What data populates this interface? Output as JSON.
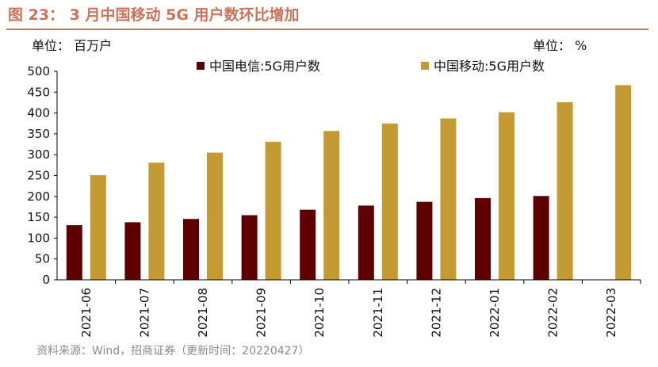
{
  "header": {
    "title": "图 23：  3 月中国移动 5G 用户数环比增加",
    "accent_color": "#c8735a",
    "unit_left": "单位：  百万户",
    "unit_right": "单位：  %"
  },
  "footer": {
    "source": "资料来源：Wind，招商证券（更新时间：20220427）"
  },
  "chart_data": {
    "type": "bar",
    "title": "3 月中国移动 5G 用户数环比增加",
    "xlabel": "",
    "ylabel": "",
    "ylim": [
      0,
      500
    ],
    "yticks": [
      "0",
      "50",
      "100",
      "150",
      "200",
      "250",
      "300",
      "350",
      "400",
      "450",
      "500"
    ],
    "grid": false,
    "legend_position": "top",
    "categories": [
      "2021-06",
      "2021-07",
      "2021-08",
      "2021-09",
      "2021-10",
      "2021-11",
      "2021-12",
      "2022-01",
      "2022-02",
      "2022-03"
    ],
    "series": [
      {
        "name": "中国电信:5G用户数",
        "color": "#5e0000",
        "values": [
          131,
          138,
          146,
          155,
          168,
          178,
          187,
          196,
          201,
          null
        ]
      },
      {
        "name": "中国移动:5G用户数",
        "color": "#c49b33",
        "values": [
          251,
          281,
          305,
          331,
          357,
          375,
          387,
          402,
          426,
          467
        ]
      }
    ]
  }
}
